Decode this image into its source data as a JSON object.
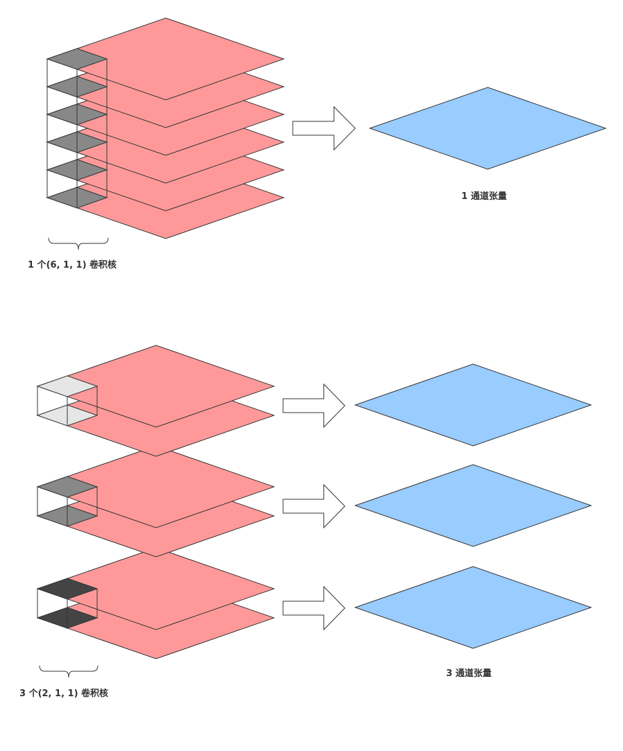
{
  "colors": {
    "input_layer": "#ff9999",
    "output_layer": "#99ccff",
    "kernel_single": "#888888",
    "kernel_group_1": "#e6e6e6",
    "kernel_group_2": "#888888",
    "kernel_group_3": "#444444",
    "stroke": "#333333"
  },
  "top": {
    "input_channels": 6,
    "kernel_label": "1 个(6, 1, 1) 卷积核",
    "output_label": "1 通道张量"
  },
  "bottom": {
    "groups": 3,
    "channels_per_group": 2,
    "kernel_label": "3 个(2, 1, 1) 卷积核",
    "output_label": "3 通道张量"
  }
}
